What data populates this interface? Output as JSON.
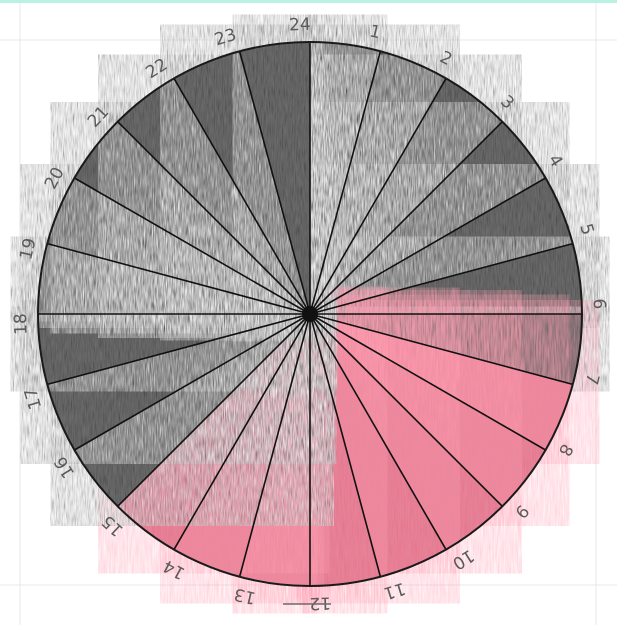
{
  "drawing": {
    "hour_labels": [
      "1",
      "2",
      "3",
      "4",
      "5",
      "6",
      "7",
      "8",
      "9",
      "10",
      "11",
      "12",
      "13",
      "14",
      "15",
      "16",
      "17",
      "18",
      "19",
      "20",
      "21",
      "22",
      "23",
      "24"
    ],
    "segments_total": 24,
    "pencil_shaded_hours": [
      "16",
      "17",
      "18",
      "19",
      "20",
      "21",
      "22",
      "23",
      "24",
      "1",
      "2",
      "3",
      "4",
      "5",
      "6",
      "7"
    ],
    "red_shaded_hours": [
      "8",
      "9",
      "10",
      "11",
      "12",
      "13",
      "14",
      "15"
    ],
    "colors": {
      "pencil": "#6f6f6f",
      "pencil_dark": "#4d4d4d",
      "red": "#e68aa0",
      "red_dark": "#d8506e",
      "line": "#111111",
      "paper": "#ffffff",
      "top_border": "#b9f2e2",
      "grid_line": "#cfcfcf"
    }
  }
}
